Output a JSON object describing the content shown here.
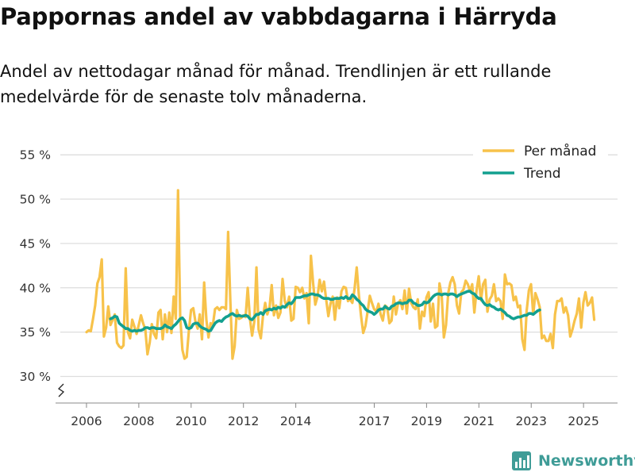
{
  "title": "Pappornas andel av vabbdagarna i Härryda",
  "subtitle": "Andel av nettodagar månad för månad. Trendlinjen är ett rullande medelvärde för de senaste tolv månaderna.",
  "brand": {
    "name": "Newsworthy"
  },
  "colors": {
    "monthly": "#f7c24a",
    "trend": "#13a08f",
    "grid": "#dddddd",
    "axis": "#888888"
  },
  "chart_data": {
    "type": "line",
    "title": "Pappornas andel av vabbdagarna i Härryda",
    "xlabel": "",
    "ylabel": "",
    "ylim": [
      27,
      56
    ],
    "y_ticks": [
      30,
      35,
      40,
      45,
      50,
      55
    ],
    "y_tick_labels": [
      "30 %",
      "35 %",
      "40 %",
      "45 %",
      "50 %",
      "55 %"
    ],
    "x_ticks": [
      2006,
      2008,
      2010,
      2012,
      2014,
      2017,
      2019,
      2021,
      2023,
      2025
    ],
    "x_tick_labels": [
      "2006",
      "2008",
      "2010",
      "2012",
      "2014",
      "2017",
      "2019",
      "2021",
      "2023",
      "2025"
    ],
    "xlim": [
      2005.0,
      2026.3
    ],
    "legend": [
      "Per månad",
      "Trend"
    ],
    "legend_position": "top-right",
    "series": [
      {
        "name": "Per månad",
        "color": "#f7c24a",
        "start": 2006.0,
        "step": 0.0833,
        "values": [
          35.0,
          35.2,
          35.1,
          36.5,
          38.0,
          40.5,
          41.2,
          43.2,
          34.5,
          35.5,
          37.9,
          35.8,
          36.4,
          37.0,
          33.8,
          33.4,
          33.2,
          33.5,
          42.2,
          35.0,
          34.3,
          36.4,
          35.6,
          34.8,
          35.8,
          36.9,
          36.0,
          35.3,
          32.5,
          33.8,
          35.9,
          34.8,
          34.3,
          37.2,
          37.5,
          34.2,
          37.0,
          35.0,
          37.2,
          34.9,
          39.0,
          36.5,
          51.0,
          36.8,
          33.0,
          32.0,
          32.2,
          35.2,
          37.5,
          37.7,
          36.2,
          35.4,
          37.0,
          34.2,
          40.6,
          36.4,
          34.4,
          36.0,
          35.8,
          37.6,
          37.8,
          37.5,
          37.8,
          37.8,
          37.6,
          46.3,
          38.5,
          32.0,
          33.4,
          37.5,
          36.5,
          36.6,
          36.9,
          36.7,
          40.0,
          36.5,
          34.6,
          36.2,
          42.3,
          35.3,
          34.3,
          36.8,
          38.3,
          37.0,
          37.8,
          40.3,
          36.9,
          38.0,
          36.6,
          37.2,
          41.0,
          38.5,
          37.8,
          39.0,
          36.3,
          36.5,
          40.1,
          40.0,
          39.5,
          40.0,
          38.8,
          39.4,
          36.0,
          43.6,
          40.5,
          38.1,
          39.0,
          40.9,
          39.6,
          40.7,
          38.7,
          36.8,
          38.2,
          39.0,
          36.4,
          38.9,
          37.7,
          39.6,
          40.1,
          40.0,
          38.5,
          38.7,
          38.3,
          39.8,
          42.3,
          39.2,
          36.8,
          34.9,
          35.7,
          37.3,
          39.1,
          38.3,
          37.6,
          37.3,
          38.2,
          37.0,
          36.3,
          38.0,
          37.8,
          36.0,
          36.3,
          39.0,
          37.0,
          38.2,
          38.6,
          37.6,
          39.7,
          37.1,
          39.9,
          38.3,
          37.8,
          37.6,
          38.7,
          35.4,
          37.3,
          36.8,
          38.9,
          39.5,
          36.2,
          38.2,
          35.5,
          35.7,
          40.5,
          39.1,
          34.4,
          35.8,
          39.4,
          40.6,
          41.2,
          40.4,
          38.0,
          37.1,
          39.5,
          39.8,
          40.8,
          40.4,
          39.6,
          40.4,
          37.2,
          39.7,
          41.3,
          38.6,
          40.4,
          40.9,
          37.3,
          38.7,
          39.1,
          40.4,
          38.5,
          38.8,
          38.5,
          36.5,
          41.5,
          40.4,
          40.5,
          40.3,
          38.6,
          39.0,
          37.8,
          38.0,
          34.2,
          33.0,
          37.4,
          39.7,
          40.4,
          37.0,
          39.4,
          38.7,
          37.8,
          34.3,
          34.6,
          34.0,
          34.0,
          34.8,
          33.2,
          37.0,
          38.5,
          38.5,
          38.8,
          37.2,
          37.8,
          36.9,
          34.5,
          35.3,
          36.3,
          37.1,
          38.8,
          35.5,
          38.3,
          39.5,
          38.0,
          38.3,
          38.9,
          36.4
        ]
      },
      {
        "name": "Trend",
        "color": "#13a08f",
        "start": 2006.917,
        "step": 0.0833,
        "values": [
          36.5,
          36.6,
          36.8,
          36.7,
          36.0,
          35.8,
          35.6,
          35.4,
          35.4,
          35.2,
          35.1,
          35.2,
          35.1,
          35.2,
          35.2,
          35.3,
          35.5,
          35.5,
          35.4,
          35.5,
          35.5,
          35.4,
          35.4,
          35.4,
          35.5,
          35.8,
          35.6,
          35.5,
          35.4,
          35.7,
          35.9,
          36.2,
          36.5,
          36.6,
          36.3,
          35.5,
          35.4,
          35.5,
          35.9,
          36.0,
          36.0,
          35.7,
          35.5,
          35.4,
          35.3,
          35.1,
          35.2,
          35.6,
          36.0,
          36.2,
          36.3,
          36.2,
          36.5,
          36.7,
          36.8,
          37.0,
          37.1,
          36.9,
          36.8,
          36.9,
          36.8,
          36.8,
          36.9,
          36.8,
          36.5,
          36.4,
          36.7,
          37.0,
          37.0,
          37.2,
          37.0,
          37.4,
          37.5,
          37.6,
          37.5,
          37.7,
          37.6,
          37.8,
          37.7,
          37.9,
          37.8,
          38.1,
          38.3,
          38.2,
          38.5,
          38.9,
          38.9,
          38.9,
          39.0,
          39.1,
          39.1,
          39.2,
          39.3,
          39.3,
          39.2,
          39.2,
          39.1,
          38.9,
          38.8,
          38.8,
          38.8,
          38.7,
          38.7,
          38.8,
          38.8,
          38.8,
          38.9,
          38.8,
          39.0,
          38.8,
          38.8,
          39.2,
          39.0,
          38.7,
          38.5,
          38.2,
          38.0,
          37.6,
          37.4,
          37.3,
          37.2,
          37.0,
          37.2,
          37.5,
          37.6,
          37.6,
          37.9,
          37.7,
          37.6,
          37.9,
          38.0,
          38.2,
          38.3,
          38.3,
          38.2,
          38.3,
          38.3,
          38.6,
          38.6,
          38.3,
          38.2,
          38.0,
          38.0,
          38.1,
          38.4,
          38.3,
          38.4,
          38.7,
          39.0,
          39.2,
          39.3,
          39.3,
          39.2,
          39.3,
          39.3,
          39.2,
          39.3,
          39.3,
          39.2,
          39.0,
          39.2,
          39.3,
          39.4,
          39.5,
          39.6,
          39.6,
          39.4,
          39.3,
          39.0,
          38.8,
          38.8,
          38.4,
          38.1,
          38.0,
          38.1,
          37.9,
          37.8,
          37.6,
          37.5,
          37.6,
          37.4,
          37.2,
          36.9,
          36.8,
          36.6,
          36.5,
          36.6,
          36.7,
          36.7,
          36.8,
          36.9,
          36.9,
          37.1,
          37.1,
          37.0,
          37.2,
          37.4,
          37.5
        ]
      }
    ]
  }
}
